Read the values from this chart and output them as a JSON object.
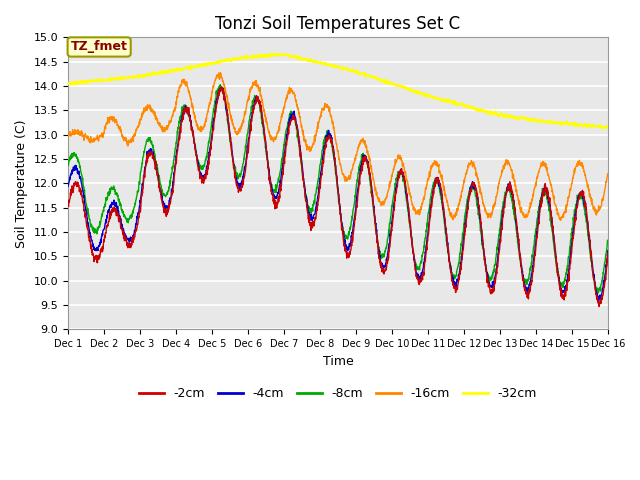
{
  "title": "Tonzi Soil Temperatures Set C",
  "xlabel": "Time",
  "ylabel": "Soil Temperature (C)",
  "ylim": [
    9.0,
    15.0
  ],
  "yticks": [
    9.0,
    9.5,
    10.0,
    10.5,
    11.0,
    11.5,
    12.0,
    12.5,
    13.0,
    13.5,
    14.0,
    14.5,
    15.0
  ],
  "xtick_labels": [
    "Dec 1",
    "Dec 2",
    "Dec 3",
    "Dec 4",
    "Dec 5",
    "Dec 6",
    "Dec 7",
    "Dec 8",
    "Dec 9",
    "Dec 10",
    "Dec 11",
    "Dec 12",
    "Dec 13",
    "Dec 14",
    "Dec 15",
    "Dec 16"
  ],
  "colors": {
    "-2cm": "#cc0000",
    "-4cm": "#0000cc",
    "-8cm": "#00aa00",
    "-16cm": "#ff8800",
    "-32cm": "#ffff00"
  },
  "legend_labels": [
    "-2cm",
    "-4cm",
    "-8cm",
    "-16cm",
    "-32cm"
  ],
  "annotation_label": "TZ_fmet",
  "annotation_bg": "#ffffcc",
  "annotation_border": "#999900",
  "plot_bg": "#e8e8e8",
  "fig_bg": "#ffffff",
  "n_points": 2000,
  "title_fontsize": 12,
  "label_fontsize": 9,
  "tick_fontsize": 8
}
